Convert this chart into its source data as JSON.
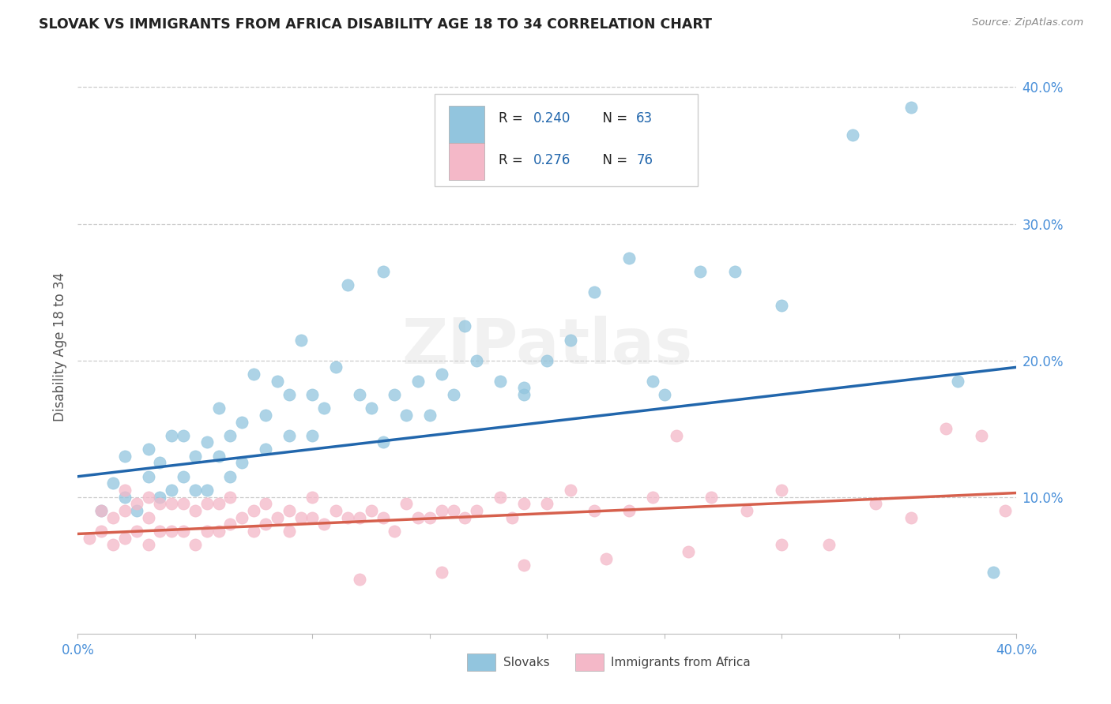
{
  "title": "SLOVAK VS IMMIGRANTS FROM AFRICA DISABILITY AGE 18 TO 34 CORRELATION CHART",
  "source_text": "Source: ZipAtlas.com",
  "ylabel": "Disability Age 18 to 34",
  "xlim": [
    0.0,
    0.4
  ],
  "ylim": [
    0.0,
    0.42
  ],
  "x_ticks": [
    0.0,
    0.05,
    0.1,
    0.15,
    0.2,
    0.25,
    0.3,
    0.35,
    0.4
  ],
  "y_ticks_right": [
    0.1,
    0.2,
    0.3,
    0.4
  ],
  "x_tick_labels": [
    "0.0%",
    "",
    "",
    "",
    "",
    "",
    "",
    "",
    "40.0%"
  ],
  "y_tick_labels_right": [
    "10.0%",
    "20.0%",
    "30.0%",
    "40.0%"
  ],
  "blue_R": 0.24,
  "blue_N": 63,
  "pink_R": 0.276,
  "pink_N": 76,
  "blue_color": "#92c5de",
  "pink_color": "#f4b8c8",
  "blue_line_color": "#2166ac",
  "pink_line_color": "#d6604d",
  "watermark": "ZIPatlas",
  "blue_line_x0": 0.0,
  "blue_line_y0": 0.115,
  "blue_line_x1": 0.4,
  "blue_line_y1": 0.195,
  "pink_line_x0": 0.0,
  "pink_line_y0": 0.073,
  "pink_line_x1": 0.4,
  "pink_line_y1": 0.103,
  "legend_label1": "R =  0.240   N = 63",
  "legend_label2": "R =  0.276   N = 76",
  "bottom_label1": "Slovaks",
  "bottom_label2": "Immigrants from Africa"
}
